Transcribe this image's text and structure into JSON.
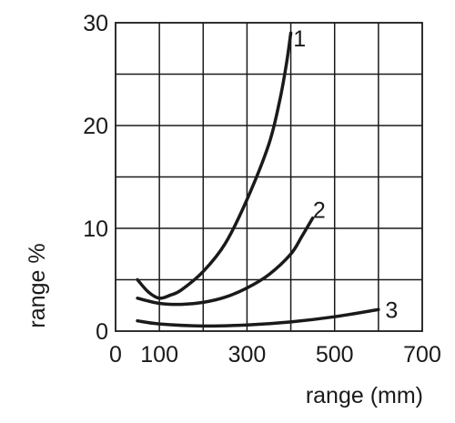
{
  "chart_data": {
    "type": "line",
    "title": "",
    "xlabel": "range (mm)",
    "ylabel": "range %",
    "xlim": [
      0,
      700
    ],
    "ylim": [
      0,
      30
    ],
    "x_ticks": [
      0,
      100,
      300,
      500,
      700
    ],
    "x_tick_labels": [
      "0",
      "100",
      "300",
      "500",
      "700"
    ],
    "x_grid": [
      0,
      100,
      200,
      300,
      400,
      500,
      600,
      700
    ],
    "y_ticks": [
      0,
      10,
      20,
      30
    ],
    "y_tick_labels": [
      "0",
      "10",
      "20",
      "30"
    ],
    "y_grid": [
      0,
      5,
      10,
      15,
      20,
      25,
      30
    ],
    "grid": true,
    "legend": "none",
    "series": [
      {
        "name": "1",
        "label_at": [
          420,
          28.5
        ],
        "x": [
          50,
          75,
          100,
          125,
          150,
          200,
          250,
          300,
          350,
          375,
          390,
          400
        ],
        "y": [
          5.0,
          3.8,
          3.2,
          3.5,
          4.0,
          5.8,
          8.5,
          12.8,
          18.2,
          22.5,
          26.0,
          29.0
        ]
      },
      {
        "name": "2",
        "label_at": [
          465,
          11.8
        ],
        "x": [
          50,
          100,
          150,
          200,
          250,
          300,
          350,
          400,
          425,
          450
        ],
        "y": [
          3.2,
          2.7,
          2.6,
          2.8,
          3.3,
          4.2,
          5.5,
          7.5,
          9.2,
          11.0
        ]
      },
      {
        "name": "3",
        "label_at": [
          630,
          2.1
        ],
        "x": [
          50,
          100,
          200,
          300,
          400,
          500,
          600
        ],
        "y": [
          1.0,
          0.7,
          0.5,
          0.6,
          0.9,
          1.4,
          2.1
        ]
      }
    ],
    "colors": {
      "line": "#1a1a1a",
      "background": "#ffffff"
    }
  }
}
